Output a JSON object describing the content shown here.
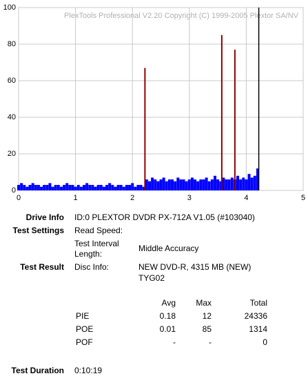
{
  "chart_data": {
    "type": "bar",
    "annotation": "PlexTools Professional V2.20 Copyright (C) 1999-2005 Plextor SA/NV",
    "xlim": [
      0,
      5
    ],
    "xticks": [
      0,
      1,
      2,
      3,
      4,
      5
    ],
    "ylim": [
      0,
      100
    ],
    "yticks": [
      0,
      20,
      40,
      60,
      80,
      100
    ],
    "grid": true,
    "series": [
      {
        "name": "PIE",
        "color": "#0000ff",
        "x": [
          0,
          0.05,
          0.1,
          0.15,
          0.2,
          0.25,
          0.3,
          0.35,
          0.4,
          0.45,
          0.5,
          0.55,
          0.6,
          0.65,
          0.7,
          0.75,
          0.8,
          0.85,
          0.9,
          0.95,
          1,
          1.05,
          1.1,
          1.15,
          1.2,
          1.25,
          1.3,
          1.35,
          1.4,
          1.45,
          1.5,
          1.55,
          1.6,
          1.65,
          1.7,
          1.75,
          1.8,
          1.85,
          1.9,
          1.95,
          2,
          2.05,
          2.1,
          2.15,
          2.2,
          2.25,
          2.3,
          2.35,
          2.4,
          2.45,
          2.5,
          2.55,
          2.6,
          2.65,
          2.7,
          2.75,
          2.8,
          2.85,
          2.9,
          2.95,
          3,
          3.05,
          3.1,
          3.15,
          3.2,
          3.25,
          3.3,
          3.35,
          3.4,
          3.45,
          3.5,
          3.55,
          3.6,
          3.65,
          3.7,
          3.75,
          3.8,
          3.85,
          3.9,
          3.95,
          4,
          4.05,
          4.1,
          4.15,
          4.2
        ],
        "values": [
          3,
          4,
          3,
          2,
          3,
          4,
          3,
          3,
          2,
          3,
          3,
          4,
          2,
          3,
          3,
          2,
          3,
          4,
          3,
          3,
          2,
          3,
          2,
          3,
          4,
          3,
          3,
          2,
          3,
          3,
          2,
          3,
          4,
          3,
          2,
          3,
          3,
          2,
          3,
          3,
          4,
          2,
          3,
          3,
          2,
          6,
          5,
          7,
          6,
          5,
          6,
          7,
          5,
          6,
          6,
          5,
          7,
          6,
          6,
          5,
          6,
          7,
          6,
          5,
          6,
          6,
          7,
          5,
          6,
          8,
          6,
          5,
          7,
          6,
          6,
          7,
          6,
          8,
          6,
          7,
          6,
          9,
          7,
          8,
          12
        ]
      },
      {
        "name": "POE",
        "color": "#8b0000",
        "x": [
          2.22,
          3.57,
          3.8
        ],
        "values": [
          67,
          85,
          77
        ]
      }
    ],
    "end_line": {
      "x": 4.22,
      "color": "#000000"
    }
  },
  "report": {
    "drive_info": {
      "label": "Drive Info",
      "value": "ID:0 PLEXTOR DVDR PX-712A V1.05 (#103040)"
    },
    "test_settings": {
      "label": "Test Settings",
      "read_speed": "Read Speed:",
      "interval_label": "Test Interval Length:",
      "interval_value": "Middle Accuracy"
    },
    "test_result": {
      "label": "Test Result",
      "disc_info_label": "Disc Info:",
      "disc_info": "NEW DVD-R, 4315 MB (NEW)",
      "disc_id": "TYG02"
    },
    "table": {
      "header": [
        "Avg",
        "Max",
        "Total"
      ],
      "rows": [
        [
          "PIE",
          "0.18",
          "12",
          "24336"
        ],
        [
          "POE",
          "0.01",
          "85",
          "1314"
        ],
        [
          "POF",
          "-",
          "-",
          "0"
        ]
      ]
    },
    "test_duration": {
      "label": "Test Duration",
      "value": "0:10:19"
    }
  }
}
